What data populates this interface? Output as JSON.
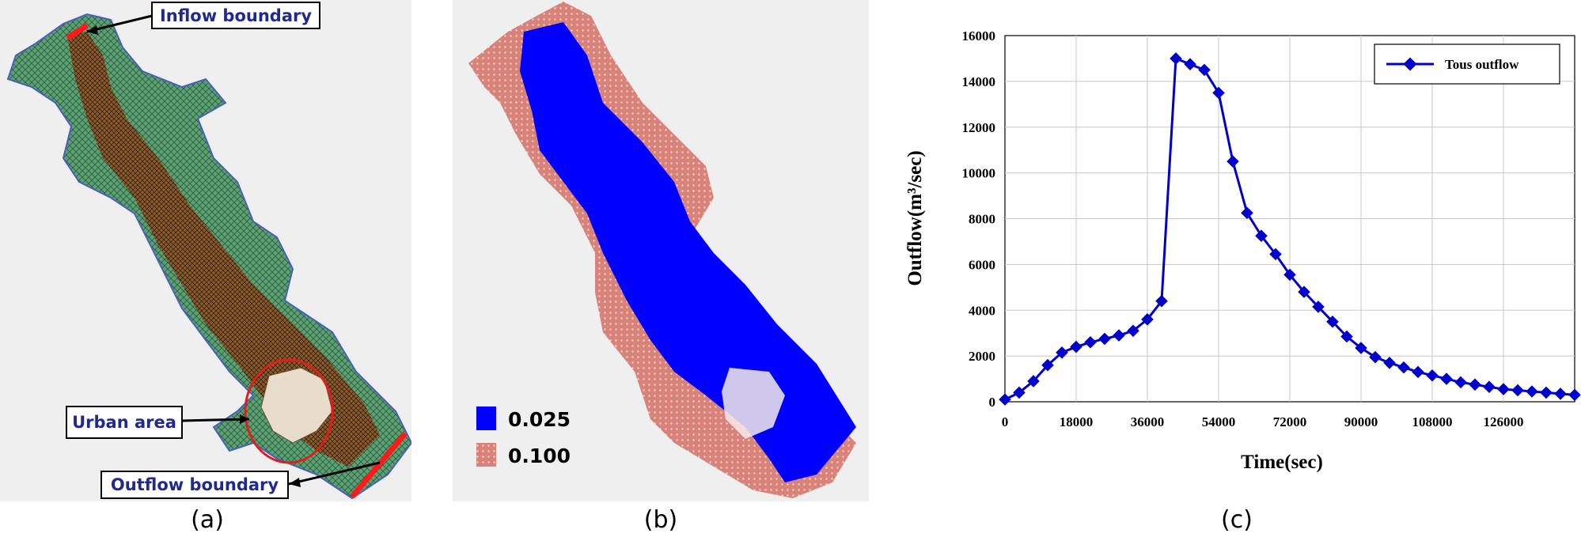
{
  "panel_a": {
    "caption": "(a)",
    "callouts": {
      "inflow": "Inflow boundary",
      "urban": "Urban area",
      "outflow": "Outflow boundary"
    }
  },
  "panel_b": {
    "caption": "(b)",
    "legend": [
      {
        "label": "0.025",
        "color": "#0000ff"
      },
      {
        "label": "0.100",
        "color": "#d9827a"
      }
    ]
  },
  "panel_c": {
    "caption": "(c)"
  },
  "chart_data": {
    "type": "line",
    "xlabel": "Time(sec)",
    "ylabel": "Outflow(m³/sec)",
    "ylim": [
      0,
      16000
    ],
    "xlim": [
      0,
      144000
    ],
    "yticks": [
      0,
      2000,
      4000,
      6000,
      8000,
      10000,
      12000,
      14000,
      16000
    ],
    "xticks": [
      0,
      18000,
      36000,
      54000,
      72000,
      90000,
      108000,
      126000
    ],
    "grid": true,
    "legend_position": "top-right",
    "series": [
      {
        "name": "Tous outflow",
        "color": "#0000cc",
        "x": [
          0,
          3600,
          7200,
          10800,
          14400,
          18000,
          21600,
          25200,
          28800,
          32400,
          36000,
          39600,
          43200,
          46800,
          50400,
          54000,
          57600,
          61200,
          64800,
          68400,
          72000,
          75600,
          79200,
          82800,
          86400,
          90000,
          93600,
          97200,
          100800,
          104400,
          108000,
          111600,
          115200,
          118800,
          122400,
          126000,
          129600,
          133200,
          136800,
          140400,
          144000
        ],
        "y": [
          100,
          400,
          900,
          1600,
          2150,
          2400,
          2600,
          2750,
          2900,
          3100,
          3600,
          4400,
          15000,
          14750,
          14500,
          13500,
          10500,
          8250,
          7250,
          6450,
          5550,
          4800,
          4150,
          3500,
          2850,
          2350,
          1950,
          1700,
          1500,
          1300,
          1150,
          1000,
          850,
          750,
          650,
          550,
          500,
          450,
          400,
          350,
          300
        ]
      }
    ]
  }
}
